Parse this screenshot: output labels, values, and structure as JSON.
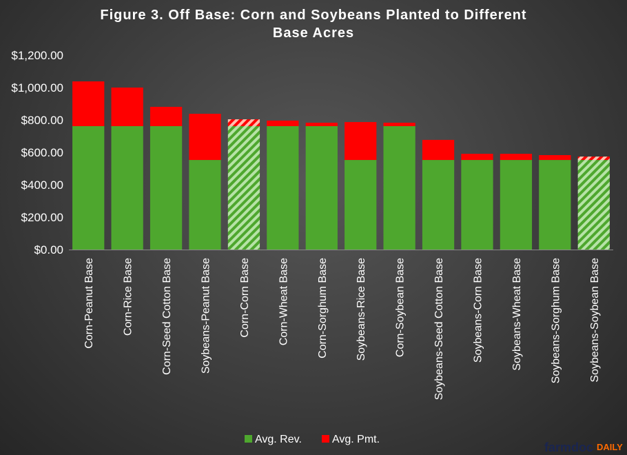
{
  "chart_data": {
    "type": "bar",
    "stacked": true,
    "title": "Figure 3. Off Base: Corn and Soybeans Planted to Different Base Acres",
    "title_lines": [
      "Figure 3. Off Base: Corn and Soybeans Planted to Different",
      "Base Acres"
    ],
    "xlabel": "",
    "ylabel": "",
    "ylim": [
      0,
      1200
    ],
    "ytick_step": 200,
    "ytick_format": "currency-2dp",
    "grid": false,
    "legend_position": "bottom",
    "categories": [
      "Corn-Peanut Base",
      "Corn-Rice Base",
      "Corn-Seed Cotton Base",
      "Soybeans-Peanut Base",
      "Corn-Corn Base",
      "Corn-Wheat Base",
      "Corn-Sorghum Base",
      "Soybeans-Rice Base",
      "Corn-Soybean Base",
      "Soybeans-Seed Cotton Base",
      "Soybeans-Corn Base",
      "Soybeans-Wheat Base",
      "Soybeans-Sorghum Base",
      "Soybeans-Soybean Base"
    ],
    "hatched_categories": [
      "Corn-Corn Base",
      "Soybeans-Soybean Base"
    ],
    "series": [
      {
        "name": "Avg. Rev.",
        "color": "#4ea72e",
        "values": [
          762,
          762,
          762,
          553,
          762,
          762,
          762,
          553,
          762,
          553,
          553,
          553,
          553,
          553
        ]
      },
      {
        "name": "Avg. Pmt.",
        "color": "#ff0000",
        "values": [
          276,
          238,
          119,
          285,
          42,
          34,
          21,
          234,
          21,
          124,
          38,
          38,
          30,
          21
        ]
      }
    ]
  },
  "watermark": {
    "text_part1": "farmdoc",
    "text_part2": "DAILY",
    "color1": "#1a2550",
    "color2": "#ff6a00"
  }
}
